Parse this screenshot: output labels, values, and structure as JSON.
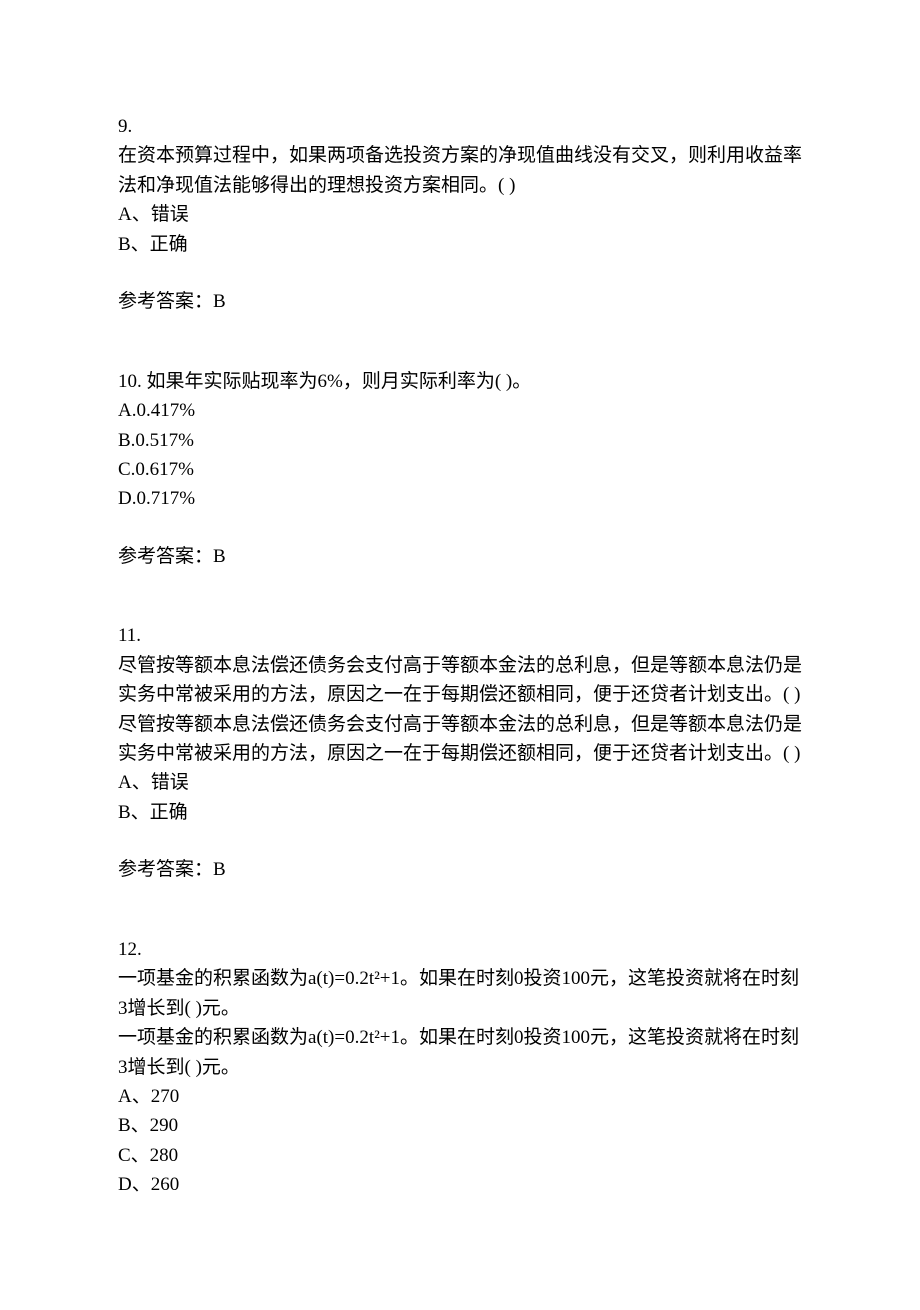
{
  "questions": [
    {
      "number": "9.",
      "text": "在资本预算过程中，如果两项备选投资方案的净现值曲线没有交叉，则利用收益率法和净现值法能够得出的理想投资方案相同。(  )",
      "textRepeat": "",
      "options": [
        "A、错误",
        "B、正确"
      ],
      "answerLabel": "参考答案：B"
    },
    {
      "number": "10.  如果年实际贴现率为6%，则月实际利率为(  )。",
      "text": "",
      "textRepeat": "",
      "options": [
        "A.0.417%",
        "B.0.517%",
        "C.0.617%",
        "D.0.717%"
      ],
      "answerLabel": "参考答案：B"
    },
    {
      "number": "11.",
      "text": "尽管按等额本息法偿还债务会支付高于等额本金法的总利息，但是等额本息法仍是实务中常被采用的方法，原因之一在于每期偿还额相同，便于还贷者计划支出。(  )",
      "textRepeat": "尽管按等额本息法偿还债务会支付高于等额本金法的总利息，但是等额本息法仍是实务中常被采用的方法，原因之一在于每期偿还额相同，便于还贷者计划支出。(  )",
      "options": [
        "A、错误",
        "B、正确"
      ],
      "answerLabel": "参考答案：B"
    },
    {
      "number": "12.",
      "text": "一项基金的积累函数为a(t)=0.2t²+1。如果在时刻0投资100元，这笔投资就将在时刻3增长到(  )元。",
      "textRepeat": "一项基金的积累函数为a(t)=0.2t²+1。如果在时刻0投资100元，这笔投资就将在时刻3增长到(  )元。",
      "options": [
        "A、270",
        "B、290",
        "C、280",
        "D、260"
      ],
      "answerLabel": ""
    }
  ]
}
